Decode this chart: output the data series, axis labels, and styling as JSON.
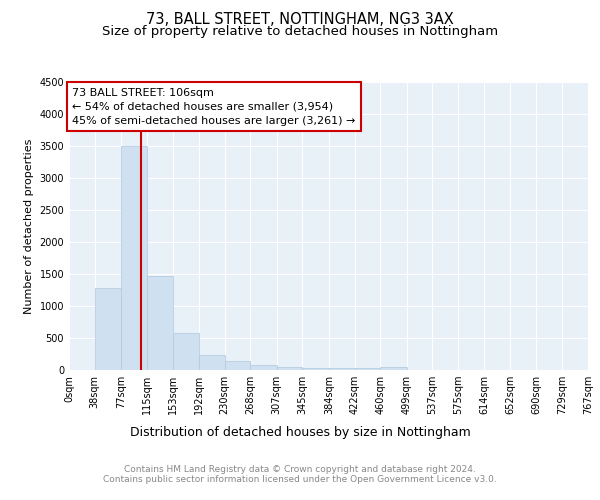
{
  "title1": "73, BALL STREET, NOTTINGHAM, NG3 3AX",
  "title2": "Size of property relative to detached houses in Nottingham",
  "xlabel": "Distribution of detached houses by size in Nottingham",
  "ylabel": "Number of detached properties",
  "bar_color": "#cfe0f0",
  "bar_edge_color": "#b0c8e0",
  "bg_color": "#e8f0f8",
  "grid_color": "#ffffff",
  "annotation_box_color": "#cc0000",
  "annotation_text": [
    "73 BALL STREET: 106sqm",
    "← 54% of detached houses are smaller (3,954)",
    "45% of semi-detached houses are larger (3,261) →"
  ],
  "vline_x": 106,
  "vline_color": "#cc0000",
  "ylim": [
    0,
    4500
  ],
  "yticks": [
    0,
    500,
    1000,
    1500,
    2000,
    2500,
    3000,
    3500,
    4000,
    4500
  ],
  "bin_edges": [
    0,
    38,
    77,
    115,
    153,
    192,
    230,
    268,
    307,
    345,
    384,
    422,
    460,
    499,
    537,
    575,
    614,
    652,
    690,
    729,
    767
  ],
  "bar_heights": [
    0,
    1280,
    3500,
    1470,
    575,
    240,
    135,
    78,
    42,
    30,
    28,
    28,
    42,
    5,
    0,
    0,
    0,
    0,
    0,
    0
  ],
  "xtick_labels": [
    "0sqm",
    "38sqm",
    "77sqm",
    "115sqm",
    "153sqm",
    "192sqm",
    "230sqm",
    "268sqm",
    "307sqm",
    "345sqm",
    "384sqm",
    "422sqm",
    "460sqm",
    "499sqm",
    "537sqm",
    "575sqm",
    "614sqm",
    "652sqm",
    "690sqm",
    "729sqm",
    "767sqm"
  ],
  "footnote1": "Contains HM Land Registry data © Crown copyright and database right 2024.",
  "footnote2": "Contains public sector information licensed under the Open Government Licence v3.0.",
  "title1_fontsize": 10.5,
  "title2_fontsize": 9.5,
  "xlabel_fontsize": 9,
  "ylabel_fontsize": 8,
  "tick_fontsize": 7,
  "annotation_fontsize": 8,
  "footnote_fontsize": 6.5
}
